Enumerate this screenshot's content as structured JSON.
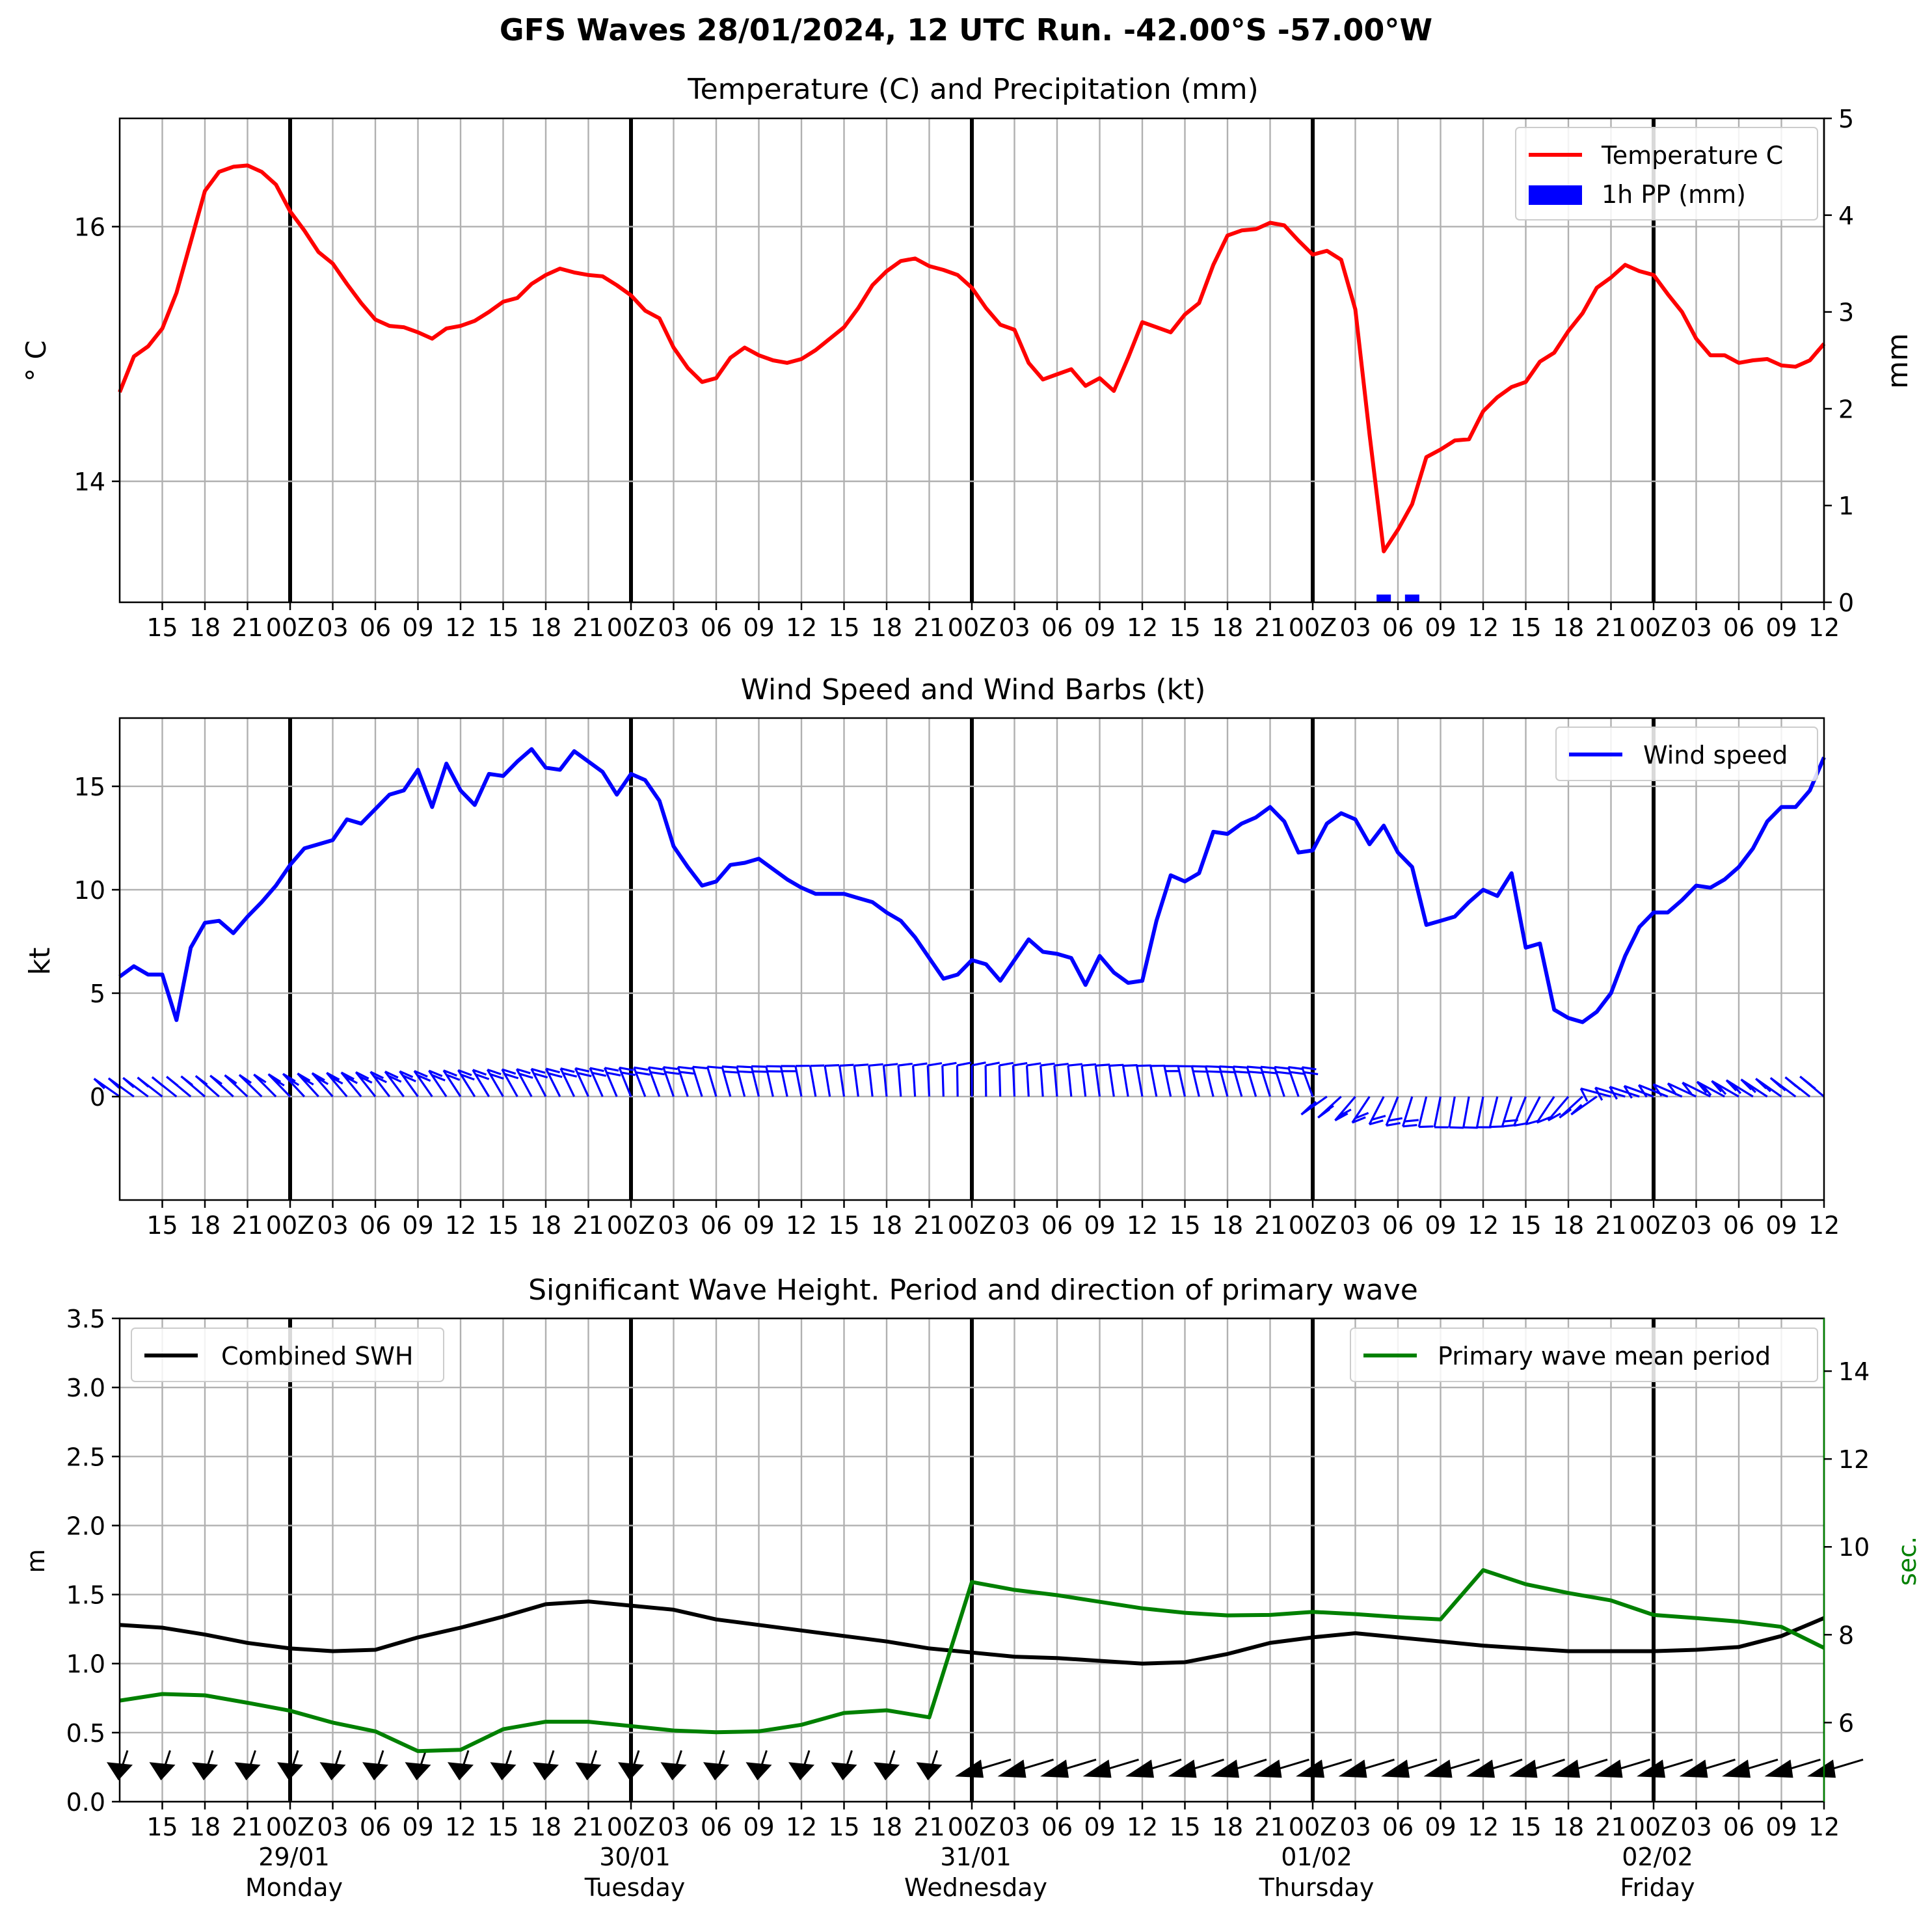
{
  "figure": {
    "title": "GFS Waves 28/01/2024, 12 UTC Run. -42.00°S -57.00°W"
  },
  "x_axis": {
    "start": "2024-01-28T12:00Z",
    "end": "2024-02-02T12:00Z",
    "tick_labels": [
      "15",
      "18",
      "21",
      "00Z",
      "03",
      "06",
      "09",
      "12",
      "15",
      "18",
      "21",
      "00Z",
      "03",
      "06",
      "09",
      "12",
      "15",
      "18",
      "21",
      "00Z",
      "03",
      "06",
      "09",
      "12",
      "15",
      "18",
      "21",
      "00Z",
      "03",
      "06",
      "09",
      "12",
      "15",
      "18",
      "21",
      "00Z",
      "03",
      "06",
      "09",
      "12"
    ],
    "date_labels": [
      "29/01",
      "30/01",
      "31/01",
      "01/02",
      "02/02"
    ],
    "day_labels": [
      "Monday",
      "Tuesday",
      "Wednesday",
      "Thursday",
      "Friday"
    ]
  },
  "chart_data": [
    {
      "type": "line",
      "title": "Temperature (C) and Precipitation (mm)",
      "ylabel": "$^\\circ$C",
      "ylabel_display": "° C",
      "ylim": [
        13.05,
        16.85
      ],
      "yticks": [
        14,
        16
      ],
      "y2label": "mm",
      "y2lim": [
        0,
        5
      ],
      "y2ticks": [
        0,
        1,
        2,
        3,
        4,
        5
      ],
      "grid": true,
      "legend": "top-right",
      "x_hours_from_run": [
        0,
        1,
        2,
        3,
        4,
        5,
        6,
        7,
        8,
        9,
        10,
        11,
        12,
        13,
        14,
        15,
        16,
        17,
        18,
        19,
        20,
        21,
        22,
        23,
        24,
        25,
        26,
        27,
        28,
        29,
        30,
        31,
        32,
        33,
        34,
        35,
        36,
        37,
        38,
        39,
        40,
        41,
        42,
        43,
        44,
        45,
        46,
        47,
        48,
        49,
        50,
        51,
        52,
        53,
        54,
        55,
        56,
        57,
        58,
        59,
        60,
        61,
        62,
        63,
        64,
        65,
        66,
        67,
        68,
        69,
        70,
        71,
        72,
        73,
        74,
        75,
        76,
        77,
        78,
        79,
        80,
        81,
        82,
        83,
        84,
        85,
        86,
        87,
        88,
        89,
        90,
        91,
        92,
        93,
        94,
        95,
        96,
        97,
        98,
        99,
        100,
        101,
        102,
        103,
        104,
        105,
        106,
        107,
        108,
        109,
        110,
        111,
        112,
        113,
        114,
        115,
        116,
        117,
        118,
        119,
        120
      ],
      "series": [
        {
          "name": "Temperature C",
          "color": "#ff0000",
          "values": [
            14.7,
            14.98,
            15.06,
            15.2,
            15.48,
            15.88,
            16.28,
            16.43,
            16.47,
            16.48,
            16.43,
            16.33,
            16.12,
            15.97,
            15.8,
            15.71,
            15.55,
            15.4,
            15.27,
            15.22,
            15.21,
            15.17,
            15.12,
            15.2,
            15.22,
            15.26,
            15.33,
            15.41,
            15.44,
            15.55,
            15.62,
            15.67,
            15.64,
            15.62,
            15.61,
            15.54,
            15.46,
            15.34,
            15.28,
            15.05,
            14.89,
            14.78,
            14.81,
            14.97,
            15.05,
            14.99,
            14.95,
            14.93,
            14.96,
            15.03,
            15.12,
            15.21,
            15.36,
            15.54,
            15.65,
            15.73,
            15.75,
            15.69,
            15.66,
            15.62,
            15.52,
            15.36,
            15.23,
            15.19,
            14.93,
            14.8,
            14.84,
            14.88,
            14.75,
            14.81,
            14.71,
            14.97,
            15.25,
            15.21,
            15.17,
            15.31,
            15.4,
            15.7,
            15.93,
            15.97,
            15.98,
            16.03,
            16.01,
            15.89,
            15.78,
            15.81,
            15.74,
            15.35,
            14.37,
            13.45,
            13.62,
            13.82,
            14.19,
            14.25,
            14.32,
            14.33,
            14.55,
            14.66,
            14.74,
            14.78,
            14.94,
            15.01,
            15.18,
            15.32,
            15.52,
            15.6,
            15.7,
            15.65,
            15.62,
            15.47,
            15.33,
            15.12,
            14.99,
            14.99,
            14.93,
            14.95,
            14.96,
            14.91,
            14.9,
            14.95,
            15.08
          ]
        },
        {
          "name": "1h PP (mm)",
          "color": "#0000ff",
          "type": "bar",
          "axis": "right",
          "x_hours_from_run": [
            89,
            91
          ],
          "values": [
            0.08,
            0.08
          ]
        }
      ]
    },
    {
      "type": "line",
      "title": "Wind Speed and Wind Barbs (kt)",
      "ylabel": "kt",
      "ylim": [
        -5,
        18.3
      ],
      "yticks": [
        0,
        5,
        10,
        15
      ],
      "grid": true,
      "legend": "top-right",
      "x_hours_from_run": [
        0,
        1,
        2,
        3,
        4,
        5,
        6,
        7,
        8,
        9,
        10,
        11,
        12,
        13,
        14,
        15,
        16,
        17,
        18,
        19,
        20,
        21,
        22,
        23,
        24,
        25,
        26,
        27,
        28,
        29,
        30,
        31,
        32,
        33,
        34,
        35,
        36,
        37,
        38,
        39,
        40,
        41,
        42,
        43,
        44,
        45,
        46,
        47,
        48,
        49,
        50,
        51,
        52,
        53,
        54,
        55,
        56,
        57,
        58,
        59,
        60,
        61,
        62,
        63,
        64,
        65,
        66,
        67,
        68,
        69,
        70,
        71,
        72,
        73,
        74,
        75,
        76,
        77,
        78,
        79,
        80,
        81,
        82,
        83,
        84,
        85,
        86,
        87,
        88,
        89,
        90,
        91,
        92,
        93,
        94,
        95,
        96,
        97,
        98,
        99,
        100,
        101,
        102,
        103,
        104,
        105,
        106,
        107,
        108,
        109,
        110,
        111,
        112,
        113,
        114,
        115,
        116,
        117,
        118,
        119,
        120
      ],
      "series": [
        {
          "name": "Wind speed",
          "color": "#0000ff",
          "values": [
            5.8,
            6.3,
            5.9,
            5.9,
            3.7,
            7.2,
            8.4,
            8.5,
            7.9,
            8.7,
            9.4,
            10.2,
            11.2,
            12.0,
            12.2,
            12.4,
            13.4,
            13.2,
            13.9,
            14.6,
            14.8,
            15.8,
            14.0,
            16.1,
            14.8,
            14.1,
            15.6,
            15.5,
            16.2,
            16.8,
            15.9,
            15.8,
            16.7,
            16.2,
            15.7,
            14.6,
            15.6,
            15.3,
            14.3,
            12.1,
            11.1,
            10.2,
            10.4,
            11.2,
            11.3,
            11.5,
            11.0,
            10.5,
            10.1,
            9.8,
            9.8,
            9.8,
            9.6,
            9.4,
            8.9,
            8.5,
            7.7,
            6.7,
            5.7,
            5.9,
            6.6,
            6.4,
            5.6,
            6.6,
            7.6,
            7.0,
            6.9,
            6.7,
            5.4,
            6.8,
            6.0,
            5.5,
            5.6,
            8.5,
            10.7,
            10.4,
            10.8,
            12.8,
            12.7,
            13.2,
            13.5,
            14.0,
            13.3,
            11.8,
            11.9,
            13.2,
            13.7,
            13.4,
            12.2,
            13.1,
            11.8,
            11.1,
            8.3,
            8.5,
            8.7,
            9.4,
            10.0,
            9.7,
            10.8,
            7.2,
            7.4,
            4.2,
            3.8,
            3.6,
            4.1,
            5.0,
            6.8,
            8.2,
            8.9,
            8.9,
            9.5,
            10.2,
            10.1,
            10.5,
            11.1,
            12.0,
            13.3,
            14.0,
            14.0,
            14.8,
            16.4
          ]
        }
      ],
      "barb_direction_pattern": {
        "hours_0_to_84": "barbs above zero line, wind from south-west to south",
        "hours_85_to_104": "barbs below zero line, wind from north-west",
        "hours_105_to_120": "barbs above zero line, wind from south-west"
      }
    },
    {
      "type": "line",
      "title": "Significant Wave Height. Period and direction of primary wave",
      "ylabel": "m",
      "ylim": [
        0,
        3.5
      ],
      "yticks": [
        0.0,
        0.5,
        1.0,
        1.5,
        2.0,
        2.5,
        3.0,
        3.5
      ],
      "ytick_labels": [
        "0.0",
        "0.5",
        "1.0",
        "1.5",
        "2.0",
        "2.5",
        "3.0",
        "3.5"
      ],
      "y2label": "sec.",
      "y2color": "#008000",
      "y2lim": [
        4.2,
        15.2
      ],
      "y2ticks": [
        6,
        8,
        10,
        12,
        14
      ],
      "grid": true,
      "legend_left": "top-left",
      "legend_right": "top-right",
      "x_hours_from_run": [
        0,
        3,
        6,
        9,
        12,
        15,
        18,
        21,
        24,
        27,
        30,
        33,
        36,
        39,
        42,
        45,
        48,
        51,
        54,
        57,
        60,
        63,
        66,
        69,
        72,
        75,
        78,
        81,
        84,
        87,
        90,
        93,
        96,
        99,
        102,
        105,
        108,
        111,
        114,
        117,
        120
      ],
      "series": [
        {
          "name": "Combined SWH",
          "color": "#000000",
          "axis": "left",
          "values": [
            1.28,
            1.26,
            1.21,
            1.15,
            1.11,
            1.09,
            1.1,
            1.19,
            1.26,
            1.34,
            1.43,
            1.45,
            1.42,
            1.39,
            1.32,
            1.28,
            1.24,
            1.2,
            1.16,
            1.11,
            1.08,
            1.05,
            1.04,
            1.02,
            1.0,
            1.01,
            1.07,
            1.15,
            1.19,
            1.22,
            1.19,
            1.16,
            1.13,
            1.11,
            1.09,
            1.09,
            1.09,
            1.1,
            1.12,
            1.2,
            1.33
          ]
        },
        {
          "name": "Primary wave mean period",
          "color": "#008000",
          "axis": "right",
          "values": [
            6.5,
            6.65,
            6.62,
            6.45,
            6.27,
            6.0,
            5.8,
            5.35,
            5.38,
            5.85,
            6.02,
            6.02,
            5.92,
            5.82,
            5.78,
            5.8,
            5.95,
            6.22,
            6.28,
            6.12,
            9.2,
            9.02,
            8.9,
            8.75,
            8.6,
            8.5,
            8.44,
            8.45,
            8.52,
            8.47,
            8.4,
            8.35,
            9.47,
            9.15,
            8.95,
            8.78,
            8.45,
            8.38,
            8.3,
            8.18,
            7.7
          ]
        }
      ],
      "direction_arrows": {
        "hours_0_to_57": "arrows pointing down (wave direction from north)",
        "hours_60_to_120": "arrows pointing west (wave direction from east)"
      }
    }
  ]
}
